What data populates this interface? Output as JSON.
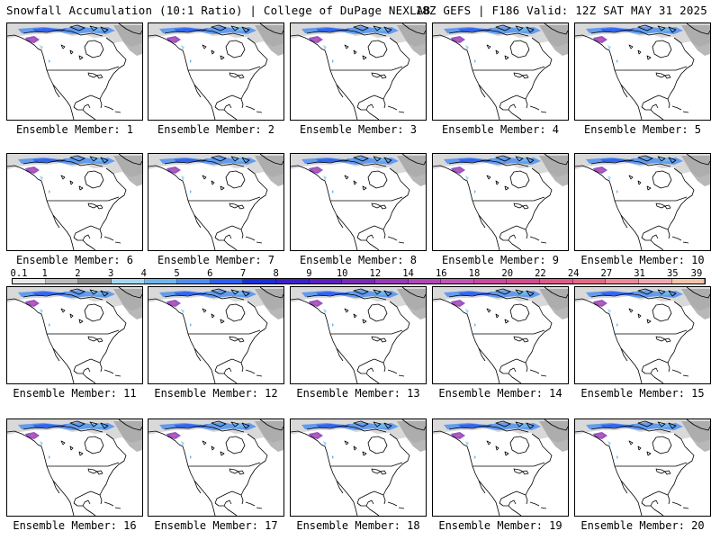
{
  "header": {
    "title": "Snowfall Accumulation (10:1 Ratio) | College of DuPage NEXLAB",
    "valid": "18Z GEFS | F186 Valid: 12Z SAT MAY 31 2025"
  },
  "panels": [
    {
      "label": "Ensemble Member: 1"
    },
    {
      "label": "Ensemble Member: 2"
    },
    {
      "label": "Ensemble Member: 3"
    },
    {
      "label": "Ensemble Member: 4"
    },
    {
      "label": "Ensemble Member: 5"
    },
    {
      "label": "Ensemble Member: 6"
    },
    {
      "label": "Ensemble Member: 7"
    },
    {
      "label": "Ensemble Member: 8"
    },
    {
      "label": "Ensemble Member: 9"
    },
    {
      "label": "Ensemble Member: 10"
    },
    {
      "label": "Ensemble Member: 11"
    },
    {
      "label": "Ensemble Member: 12"
    },
    {
      "label": "Ensemble Member: 13"
    },
    {
      "label": "Ensemble Member: 14"
    },
    {
      "label": "Ensemble Member: 15"
    },
    {
      "label": "Ensemble Member: 16"
    },
    {
      "label": "Ensemble Member: 17"
    },
    {
      "label": "Ensemble Member: 18"
    },
    {
      "label": "Ensemble Member: 19"
    },
    {
      "label": "Ensemble Member: 20"
    }
  ],
  "colorbar": {
    "labels": [
      "0.1",
      "1",
      "2",
      "3",
      "4",
      "5",
      "6",
      "7",
      "8",
      "9",
      "10",
      "12",
      "14",
      "16",
      "18",
      "20",
      "22",
      "24",
      "27",
      "31",
      "35",
      "39"
    ],
    "colors": [
      "#e8e8e8",
      "#bdbdbd",
      "#8f8f8f",
      "#a5d8f0",
      "#6fb6ee",
      "#4e8ff0",
      "#2f5ff0",
      "#1a2fd8",
      "#3a22c8",
      "#5a20c0",
      "#7a2ab8",
      "#9a3ab8",
      "#b048b8",
      "#c058b0",
      "#cc4aa0",
      "#d84a90",
      "#e05a8a",
      "#e66a88",
      "#ec8a9a",
      "#f2a8b0",
      "#f5c3a8"
    ]
  }
}
